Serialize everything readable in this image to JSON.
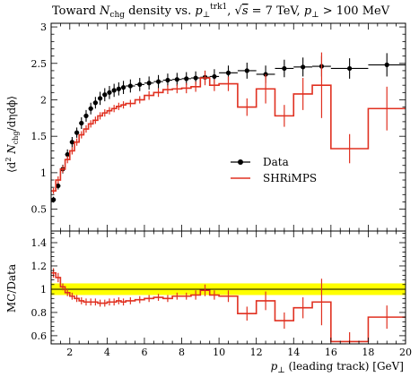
{
  "title_parts": {
    "lead": "Toward ",
    "n": "N",
    "chg": "chg",
    "mid": " density vs. ",
    "p": "p",
    "perp": "⊥",
    "trk1": "trk1",
    "comma1": ", ",
    "sqrt": "√",
    "s": "s",
    "energy": " = 7 TeV, ",
    "p2": "p",
    "perp2": "⊥",
    "cut": " > 100 MeV"
  },
  "ylabel_main": {
    "open": "⟨d",
    "sup2": "2",
    "n": " N",
    "chg": "chg",
    "rest": "/dηdϕ⟩"
  },
  "ylabel_ratio": "MC/Data",
  "xlabel": {
    "p": "p",
    "perp": "⊥",
    "rest": " (leading track) [GeV]"
  },
  "legend": {
    "data": "Data",
    "mc": "SHRiMPS"
  },
  "colors": {
    "data": "#000000",
    "mc": "#e03020",
    "band": "#ffff00"
  },
  "chart_data": [
    {
      "type": "line",
      "panel": "main",
      "xlim": [
        1,
        20
      ],
      "ylim": [
        0.2,
        3.05
      ],
      "x_ticks": [
        "2",
        "4",
        "6",
        "8",
        "10",
        "12",
        "14",
        "16",
        "18",
        "20"
      ],
      "y_ticks": [
        "0.5",
        "1",
        "1.5",
        "2",
        "2.5",
        "3"
      ],
      "series": [
        {
          "name": "Data",
          "x": [
            1.125,
            1.375,
            1.625,
            1.875,
            2.125,
            2.375,
            2.625,
            2.875,
            3.125,
            3.375,
            3.625,
            3.875,
            4.125,
            4.375,
            4.625,
            4.875,
            5.25,
            5.75,
            6.25,
            6.75,
            7.25,
            7.75,
            8.25,
            8.75,
            9.25,
            9.75,
            10.5,
            11.5,
            12.5,
            13.5,
            14.5,
            15.5,
            17.0,
            19.0
          ],
          "y": [
            0.63,
            0.82,
            1.05,
            1.25,
            1.42,
            1.55,
            1.68,
            1.78,
            1.88,
            1.96,
            2.02,
            2.07,
            2.1,
            2.13,
            2.15,
            2.17,
            2.19,
            2.21,
            2.23,
            2.25,
            2.27,
            2.28,
            2.29,
            2.3,
            2.31,
            2.32,
            2.37,
            2.4,
            2.35,
            2.43,
            2.45,
            2.46,
            2.43,
            2.48
          ],
          "yerr": [
            0.04,
            0.05,
            0.06,
            0.07,
            0.07,
            0.07,
            0.08,
            0.08,
            0.08,
            0.08,
            0.09,
            0.09,
            0.09,
            0.09,
            0.09,
            0.09,
            0.09,
            0.09,
            0.09,
            0.09,
            0.09,
            0.09,
            0.09,
            0.09,
            0.09,
            0.1,
            0.1,
            0.11,
            0.12,
            0.12,
            0.13,
            0.14,
            0.14,
            0.16
          ],
          "xerr": [
            0.125,
            0.125,
            0.125,
            0.125,
            0.125,
            0.125,
            0.125,
            0.125,
            0.125,
            0.125,
            0.125,
            0.125,
            0.125,
            0.125,
            0.125,
            0.125,
            0.25,
            0.25,
            0.25,
            0.25,
            0.25,
            0.25,
            0.25,
            0.25,
            0.25,
            0.25,
            0.5,
            0.5,
            0.5,
            0.5,
            0.5,
            0.5,
            1.0,
            1.0
          ]
        },
        {
          "name": "SHRiMPS",
          "edges": [
            1.0,
            1.25,
            1.5,
            1.75,
            2.0,
            2.25,
            2.5,
            2.75,
            3.0,
            3.25,
            3.5,
            3.75,
            4.0,
            4.25,
            4.5,
            4.75,
            5.0,
            5.5,
            6.0,
            6.5,
            7.0,
            7.5,
            8.0,
            8.5,
            9.0,
            9.5,
            10.0,
            11.0,
            12.0,
            13.0,
            14.0,
            15.0,
            16.0,
            18.0,
            20.0
          ],
          "values": [
            0.75,
            0.9,
            1.05,
            1.18,
            1.3,
            1.42,
            1.52,
            1.6,
            1.67,
            1.72,
            1.78,
            1.82,
            1.85,
            1.88,
            1.91,
            1.93,
            1.95,
            2.0,
            2.06,
            2.1,
            2.14,
            2.15,
            2.16,
            2.18,
            2.3,
            2.2,
            2.22,
            1.9,
            2.15,
            1.78,
            2.08,
            2.2,
            1.33,
            1.88
          ],
          "err": [
            0.04,
            0.05,
            0.05,
            0.05,
            0.05,
            0.05,
            0.05,
            0.05,
            0.05,
            0.05,
            0.05,
            0.05,
            0.05,
            0.05,
            0.05,
            0.05,
            0.05,
            0.05,
            0.06,
            0.06,
            0.06,
            0.06,
            0.07,
            0.07,
            0.1,
            0.08,
            0.1,
            0.12,
            0.2,
            0.15,
            0.22,
            0.45,
            0.2,
            0.3
          ]
        }
      ],
      "legend": "right"
    },
    {
      "type": "line",
      "panel": "ratio",
      "xlim": [
        1,
        20
      ],
      "ylim": [
        0.53,
        1.5
      ],
      "x_ticks": [
        "2",
        "4",
        "6",
        "8",
        "10",
        "12",
        "14",
        "16",
        "18",
        "20"
      ],
      "y_ticks": [
        "0.6",
        "0.8",
        "1",
        "1.2",
        "1.4"
      ],
      "band": [
        0.95,
        1.05
      ],
      "series": [
        {
          "name": "SHRiMPS",
          "edges": [
            1.0,
            1.25,
            1.5,
            1.75,
            2.0,
            2.25,
            2.5,
            2.75,
            3.0,
            3.25,
            3.5,
            3.75,
            4.0,
            4.25,
            4.5,
            4.75,
            5.0,
            5.5,
            6.0,
            6.5,
            7.0,
            7.5,
            8.0,
            8.5,
            9.0,
            9.5,
            10.0,
            11.0,
            12.0,
            13.0,
            14.0,
            15.0,
            16.0,
            18.0,
            20.0
          ],
          "values": [
            1.14,
            1.1,
            1.02,
            0.97,
            0.94,
            0.92,
            0.9,
            0.89,
            0.89,
            0.89,
            0.88,
            0.88,
            0.89,
            0.89,
            0.9,
            0.89,
            0.9,
            0.91,
            0.92,
            0.93,
            0.92,
            0.94,
            0.94,
            0.95,
            0.99,
            0.95,
            0.94,
            0.79,
            0.9,
            0.73,
            0.84,
            0.89,
            0.55,
            0.76
          ],
          "err": [
            0.04,
            0.04,
            0.03,
            0.03,
            0.03,
            0.03,
            0.03,
            0.03,
            0.03,
            0.03,
            0.03,
            0.03,
            0.03,
            0.03,
            0.03,
            0.03,
            0.03,
            0.03,
            0.03,
            0.03,
            0.03,
            0.03,
            0.03,
            0.04,
            0.05,
            0.04,
            0.05,
            0.06,
            0.08,
            0.07,
            0.09,
            0.2,
            0.08,
            0.1
          ]
        }
      ]
    }
  ]
}
